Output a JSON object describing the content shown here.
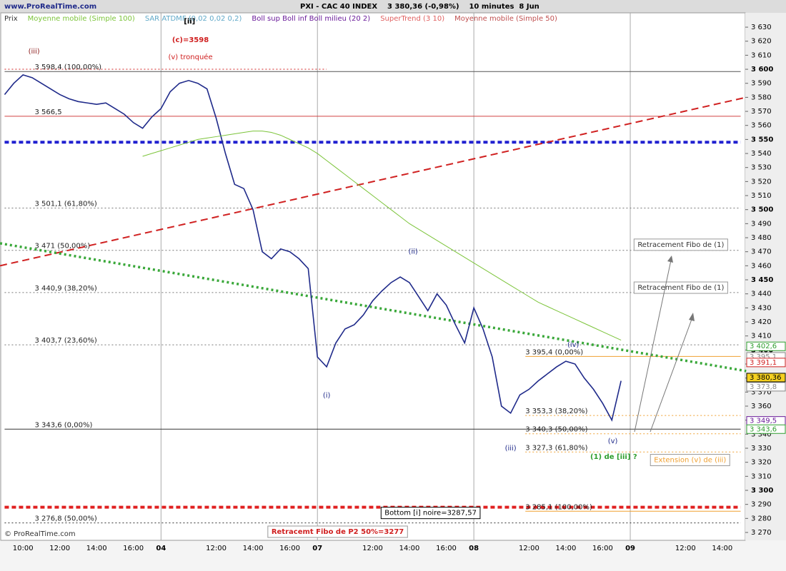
{
  "header": {
    "site": "www.ProRealTime.com",
    "title": "PXI - CAC 40 INDEX    3 380,36 (-0,98%)    10 minutes  8 Jun",
    "copyright": "© ProRealTime.com"
  },
  "chart_data": {
    "type": "line",
    "categories": [
      null,
      null,
      "10:00",
      null,
      null,
      null,
      "12:00",
      null,
      null,
      null,
      "14:00",
      null,
      null,
      null,
      "16:00",
      null,
      null,
      "04",
      null,
      null,
      null,
      null,
      null,
      "12:00",
      null,
      null,
      null,
      "14:00",
      null,
      null,
      null,
      "16:00",
      null,
      null,
      "07",
      null,
      null,
      null,
      null,
      null,
      "12:00",
      null,
      null,
      null,
      "14:00",
      null,
      null,
      null,
      "16:00",
      null,
      null,
      "08",
      null,
      null,
      null,
      null,
      null,
      "12:00",
      null,
      null,
      null,
      "14:00",
      null,
      null,
      null,
      "16:00",
      null,
      null,
      "09",
      null,
      null,
      null,
      null,
      null,
      "12:00",
      null,
      null,
      null,
      "14:00",
      null,
      null
    ],
    "series": [
      {
        "name": "Prix",
        "color": "#1f2a8a",
        "values": [
          3582,
          3590,
          3596,
          3594,
          3590,
          3586,
          3582,
          3579,
          3577,
          3576,
          3575,
          3576,
          3572,
          3568,
          3562,
          3558,
          3566,
          3572,
          3584,
          3590,
          3592,
          3590,
          3586,
          3565,
          3540,
          3518,
          3515,
          3500,
          3470,
          3465,
          3472,
          3470,
          3465,
          3458,
          3395,
          3388,
          3405,
          3415,
          3418,
          3425,
          3435,
          3442,
          3448,
          3452,
          3448,
          3438,
          3428,
          3440,
          3432,
          3418,
          3405,
          3430,
          3415,
          3395,
          3360,
          3355,
          3368,
          3372,
          3378,
          3383,
          3388,
          3392,
          3390,
          3380,
          3372,
          3362,
          3350,
          3378,
          null,
          null,
          null,
          null,
          null,
          null,
          null,
          null,
          null,
          null,
          null,
          null,
          null
        ]
      },
      {
        "name": "Moyenne mobile (Simple 100)",
        "color": "#7cc43a",
        "values": [
          null,
          null,
          null,
          null,
          null,
          null,
          null,
          null,
          null,
          null,
          null,
          null,
          null,
          null,
          null,
          3538,
          3540,
          3542,
          3544,
          3546,
          3548,
          3550,
          3551,
          3552,
          3553,
          3554,
          3555,
          3556,
          3556,
          3555,
          3553,
          3550,
          3547,
          3544,
          3540,
          3535,
          3530,
          3525,
          3520,
          3515,
          3510,
          3505,
          3500,
          3495,
          3490,
          3486,
          3482,
          3478,
          3474,
          3470,
          3466,
          3462,
          3458,
          3454,
          3450,
          3446,
          3442,
          3438,
          3434,
          3431,
          3428,
          3425,
          3422,
          3419,
          3416,
          3413,
          3410,
          3407,
          null,
          null,
          null,
          null,
          null,
          null,
          null,
          null,
          null,
          null,
          null,
          null,
          null
        ]
      }
    ],
    "indicators": [
      {
        "name": "SAR ATDMF (0,02 0,02 0,2)",
        "color": "#5fa8c8"
      },
      {
        "name": "Boll sup Boll inf Boll milieu (20 2)",
        "color": "#6a1b9a"
      },
      {
        "name": "SuperTrend (3 10)",
        "color": "#e06060"
      },
      {
        "name": "Moyenne mobile (Simple 50)",
        "color": "#c05050"
      }
    ],
    "ylim": [
      3264.4,
      3640.2
    ],
    "yticks": [
      {
        "value": 3270,
        "label": "3 270"
      },
      {
        "value": 3280,
        "label": "3 280"
      },
      {
        "value": 3290,
        "label": "3 290"
      },
      {
        "value": 3300,
        "label": "3 300"
      },
      {
        "value": 3310,
        "label": "3 310"
      },
      {
        "value": 3320,
        "label": "3 320"
      },
      {
        "value": 3330,
        "label": "3 330"
      },
      {
        "value": 3340,
        "label": "3 340"
      },
      {
        "value": 3350,
        "label": "3 350"
      },
      {
        "value": 3360,
        "label": "3 360"
      },
      {
        "value": 3370,
        "label": "3 370"
      },
      {
        "value": 3380,
        "label": "3 380"
      },
      {
        "value": 3390,
        "label": "3 390"
      },
      {
        "value": 3400,
        "label": "3 400"
      },
      {
        "value": 3410,
        "label": "3 410"
      },
      {
        "value": 3420,
        "label": "3 420"
      },
      {
        "value": 3430,
        "label": "3 430"
      },
      {
        "value": 3440,
        "label": "3 440"
      },
      {
        "value": 3450,
        "label": "3 450"
      },
      {
        "value": 3460,
        "label": "3 460"
      },
      {
        "value": 3470,
        "label": "3 470"
      },
      {
        "value": 3480,
        "label": "3 480"
      },
      {
        "value": 3490,
        "label": "3 490"
      },
      {
        "value": 3500,
        "label": "3 500"
      },
      {
        "value": 3510,
        "label": "3 510"
      },
      {
        "value": 3520,
        "label": "3 520"
      },
      {
        "value": 3530,
        "label": "3 530"
      },
      {
        "value": 3540,
        "label": "3 540"
      },
      {
        "value": 3550,
        "label": "3 550"
      },
      {
        "value": 3560,
        "label": "3 560"
      },
      {
        "value": 3570,
        "label": "3 570"
      },
      {
        "value": 3580,
        "label": "3 580"
      },
      {
        "value": 3590,
        "label": "3 590"
      },
      {
        "value": 3600,
        "label": "3 600"
      },
      {
        "value": 3610,
        "label": "3 610"
      },
      {
        "value": 3620,
        "label": "3 620"
      },
      {
        "value": 3630,
        "label": "3 630"
      }
    ],
    "levels": [
      {
        "value": 3598.4,
        "label": "3 598,4 (100,00%)",
        "color": "#555555",
        "style": "solid",
        "from": 0,
        "to": 80
      },
      {
        "value": 3600,
        "color": "#d02020",
        "style": "dotted",
        "from": 0,
        "to": 35
      },
      {
        "value": 3566.5,
        "label": "3 566,5",
        "color": "#d04040",
        "style": "solid",
        "from": 0,
        "to": 80
      },
      {
        "value": 3548,
        "color": "#2020d0",
        "style": "heavy",
        "from": 0,
        "to": 80
      },
      {
        "value": 3501.1,
        "label": "3 501,1 (61,80%)",
        "color": "#777777",
        "style": "dotted",
        "from": 0,
        "to": 80
      },
      {
        "value": 3471,
        "label": "3 471 (50,00%)",
        "color": "#777777",
        "style": "dotted",
        "from": 0,
        "to": 80
      },
      {
        "value": 3440.9,
        "label": "3 440,9 (38,20%)",
        "color": "#777777",
        "style": "dotted",
        "from": 0,
        "to": 80
      },
      {
        "value": 3403.7,
        "label": "3 403,7 (23,60%)",
        "color": "#777777",
        "style": "dotted",
        "from": 0,
        "to": 80
      },
      {
        "value": 3343.6,
        "label": "3 343,6 (0,00%)",
        "color": "#333333",
        "style": "solid",
        "from": 0,
        "to": 80
      },
      {
        "value": 3288,
        "color": "#e02020",
        "style": "heavy",
        "from": 0,
        "to": 80
      },
      {
        "value": 3276.8,
        "label": "3 276,8 (50,00%)",
        "color": "#333333",
        "style": "dotted",
        "from": 0,
        "to": 80
      },
      {
        "value": 3395.4,
        "label": "3 395,4 (0,00%)",
        "color": "#f0a030",
        "style": "solid",
        "from": 56.6,
        "to": 80
      },
      {
        "value": 3353.3,
        "label": "3 353,3 (38,20%)",
        "color": "#f0a030",
        "style": "dotted",
        "from": 56.6,
        "to": 80
      },
      {
        "value": 3340.3,
        "label": "3 340,3 (50,00%)",
        "color": "#f0a030",
        "style": "dotted",
        "from": 56.6,
        "to": 80
      },
      {
        "value": 3327.3,
        "label": "3 327,3 (61,80%)",
        "color": "#f0a030",
        "style": "dotted",
        "from": 56.6,
        "to": 80
      },
      {
        "value": 3285.1,
        "label": "3 285,1 (100,00%)",
        "color": "#f0a030",
        "style": "solid",
        "from": 56.6,
        "to": 80
      }
    ],
    "trendlines": [
      {
        "color": "#d02020",
        "style": "dashed",
        "from": [
          -0.5,
          3460
        ],
        "to": [
          80.6,
          3580
        ]
      },
      {
        "color": "#3aa83a",
        "style": "dotted-heavy",
        "from": [
          -0.5,
          3476
        ],
        "to": [
          80.6,
          3385
        ]
      }
    ],
    "price_tags": [
      {
        "value": 3402.6,
        "label": "3 402,6",
        "color": "#2e9e2e",
        "fill": "#ffffff"
      },
      {
        "value": 3395.1,
        "label": "3 395,1",
        "color": "#888888",
        "fill": "#ffffff"
      },
      {
        "value": 3391.1,
        "label": "3 391,1",
        "color": "#d02020",
        "fill": "#ffffff"
      },
      {
        "value": 3380.36,
        "label": "3 380,36",
        "color": "#000000",
        "fill": "#f5d020"
      },
      {
        "value": 3373.8,
        "label": "3 373,8",
        "color": "#888888",
        "fill": "#ffffff"
      },
      {
        "value": 3349.5,
        "label": "3 349,5",
        "color": "#6a1b9a",
        "fill": "#ffffff"
      },
      {
        "value": 3343.6,
        "label": "3 343,6",
        "color": "#2e9e2e",
        "fill": "#ffffff"
      }
    ],
    "annotations": [
      {
        "text": "[ii]",
        "at": [
          20.1,
          3634
        ],
        "color": "#000000",
        "bold": true
      },
      {
        "text": "(c)=3598",
        "at": [
          20.2,
          3621
        ],
        "color": "#d02020",
        "bold": true
      },
      {
        "text": "(v) tronquée",
        "at": [
          20.2,
          3608.6
        ],
        "color": "#d02020"
      },
      {
        "text": "(iii)",
        "at": [
          3.2,
          3612.7
        ],
        "color": "#8b1a1a"
      },
      {
        "text": "(i)",
        "at": [
          35,
          3367.6
        ],
        "color": "#1f2a8a"
      },
      {
        "text": "(ii)",
        "at": [
          44.4,
          3470
        ],
        "color": "#1f2a8a"
      },
      {
        "text": "(iii)",
        "at": [
          55,
          3330
        ],
        "color": "#1f2a8a"
      },
      {
        "text": "(iv)",
        "at": [
          61.8,
          3403.7
        ],
        "color": "#1f2a8a"
      },
      {
        "text": "(v)",
        "at": [
          66.1,
          3335
        ],
        "color": "#1f2a8a"
      },
      {
        "text": "(1) de [iii] ?",
        "at": [
          66.2,
          3324
        ],
        "color": "#2e9e2e",
        "bold": true
      },
      {
        "text": "Extension (v) de (iii)",
        "at": [
          74.5,
          3321.6
        ],
        "color": "#f0a030",
        "boxed": true
      },
      {
        "text": "Retracement Fibo de (1)",
        "at": [
          73.5,
          3475
        ],
        "color": "#333333",
        "boxed": true
      },
      {
        "text": "Retracement Fibo de (1)",
        "at": [
          73.5,
          3444.4
        ],
        "color": "#333333",
        "boxed": true
      },
      {
        "text": "Bottom [i] noire=3287,57",
        "at": [
          46.3,
          3283.9
        ],
        "color": "#000000",
        "boxed": true
      },
      {
        "text": "Retracemt Fibo de P2 50%=3277",
        "at": [
          36.2,
          3270.5
        ],
        "color": "#d02020",
        "boxed": true,
        "bold": true
      }
    ]
  }
}
